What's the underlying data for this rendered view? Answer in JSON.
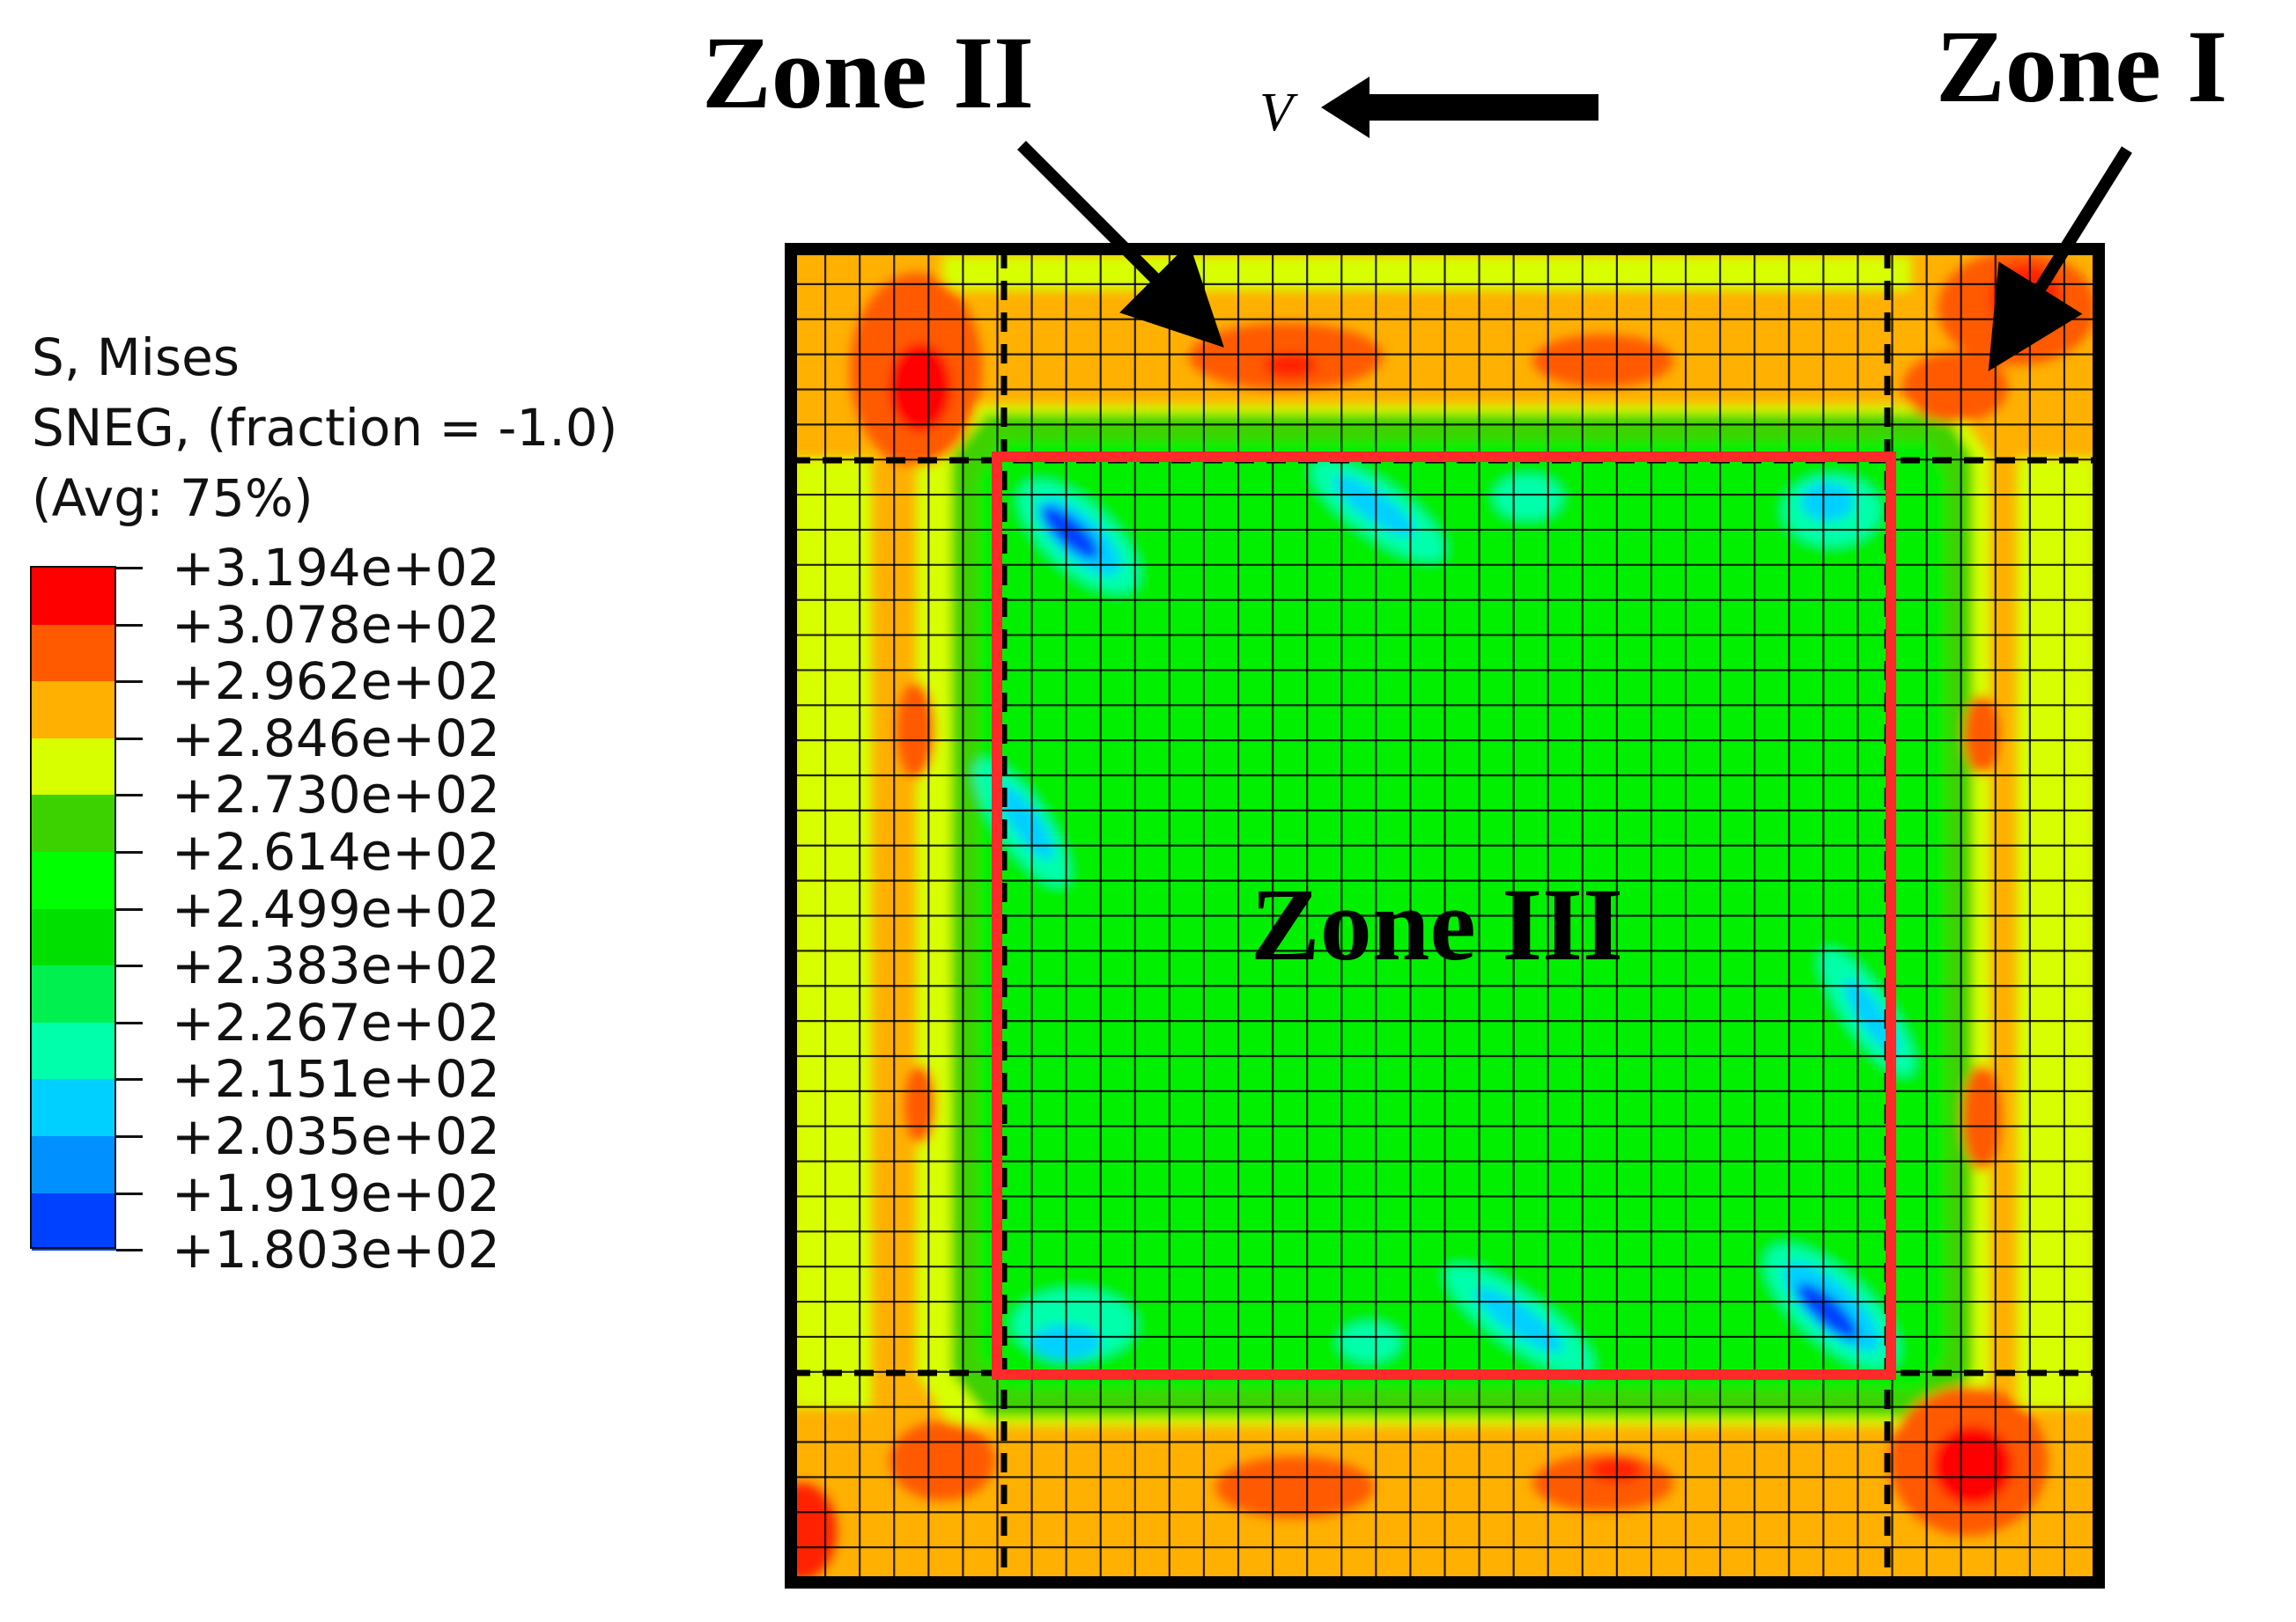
{
  "legend": {
    "title_lines": [
      "S, Mises",
      "SNEG, (fraction = -1.0)",
      "(Avg: 75%)"
    ],
    "values": [
      "+3.194e+02",
      "+3.078e+02",
      "+2.962e+02",
      "+2.846e+02",
      "+2.730e+02",
      "+2.614e+02",
      "+2.499e+02",
      "+2.383e+02",
      "+2.267e+02",
      "+2.151e+02",
      "+2.035e+02",
      "+1.919e+02",
      "+1.803e+02"
    ],
    "colors": [
      "#ff0000",
      "#ff5a00",
      "#ffb000",
      "#d7ff00",
      "#3cd200",
      "#00ff00",
      "#00e000",
      "#00f050",
      "#00ffaa",
      "#00d0ff",
      "#0090ff",
      "#0040ff",
      "#0000ff"
    ]
  },
  "labels": {
    "zone_i": "Zone  I",
    "zone_ii": "Zone  II",
    "zone_iii": "Zone  III",
    "velocity": "V"
  }
}
